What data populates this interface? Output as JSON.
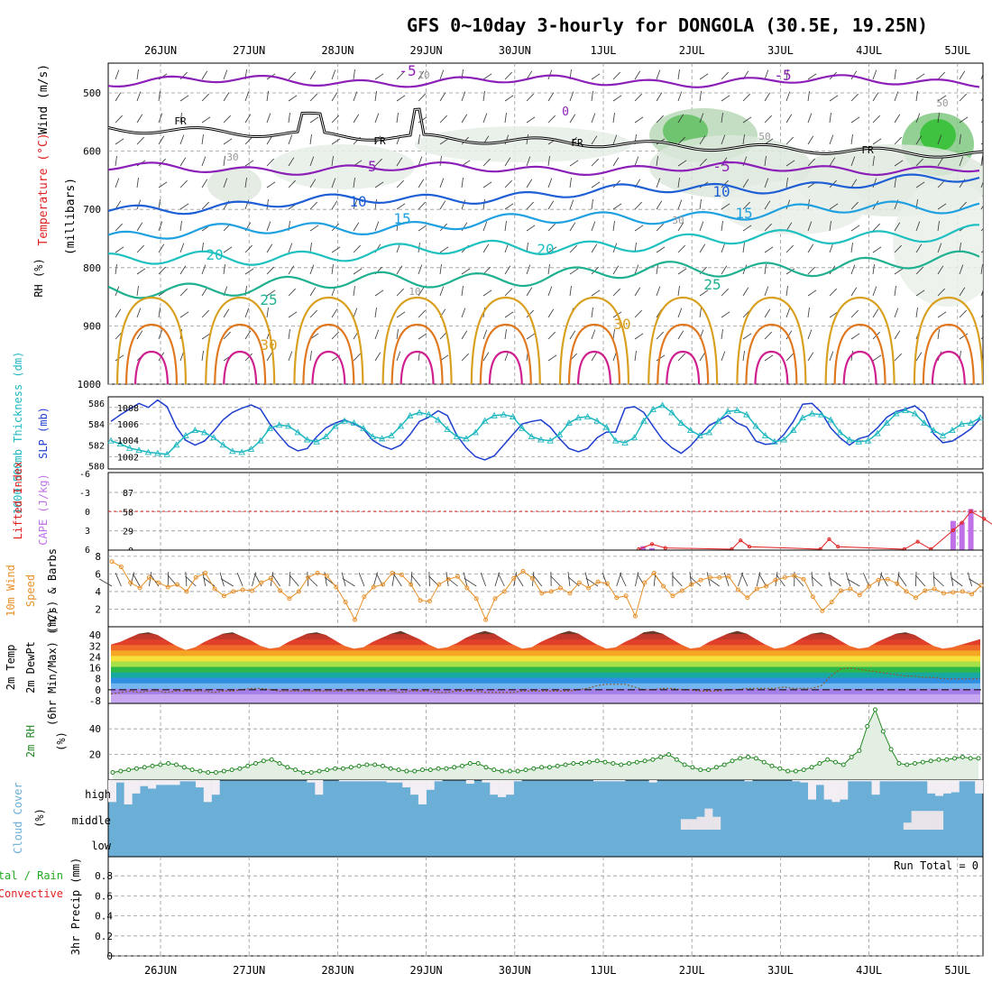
{
  "title": "GFS 0~10day 3-hourly for DONGOLA (30.5E, 19.25N)",
  "colors": {
    "temp5": "#8b1fb8",
    "temp10": "#1f5fd6",
    "temp15": "#1fa0e0",
    "temp20": "#1fc0c0",
    "temp25": "#1fb090",
    "temp30": "#d9a020",
    "temp35": "#e07820",
    "temp40": "#d0208f",
    "slp": "#1f3fcf",
    "thickness": "#1fb8c0",
    "cape": "#c070e8",
    "li": "#e02020",
    "wind": "#e8902a",
    "rh2m": "#228822",
    "cloud": "#6baed6",
    "precip_total": "#22aa22",
    "precip_conv": "#e02020"
  },
  "chart_data": [
    {
      "type": "heatmap",
      "name": "pressure-time cross section",
      "ylabel_parts": [
        "Wind (m/s)",
        "Temperature (°C)",
        "(millibars)",
        "RH (%)"
      ],
      "ylim": [
        1000,
        450
      ],
      "yticks": [
        500,
        600,
        700,
        800,
        900,
        1000
      ],
      "x_dates": [
        "26JUN",
        "27JUN",
        "28JUN",
        "29JUN",
        "30JUN",
        "1JUL",
        "2JUL",
        "3JUL",
        "4JUL",
        "5JUL"
      ],
      "contour_labels": [
        "-5",
        "-5",
        "0",
        "-5",
        "-5",
        "10",
        "10",
        "15",
        "15",
        "20",
        "20",
        "25",
        "25",
        "30",
        "30",
        "10",
        "10",
        "50",
        "50",
        "30",
        "30",
        "FR",
        "FR",
        "FR",
        "FR"
      ],
      "isotherm_levels_mb": {
        "-5a": 480,
        "-5b": 630,
        "10": 700,
        "15": 745,
        "20": 790,
        "25": 840,
        "30": 900
      },
      "freezing_level_mb": 600,
      "grid": true
    },
    {
      "type": "line",
      "name": "SLP and thickness",
      "ylabel_left": "1000-500mb Thickness (dm)",
      "ylabel_right": "SLP (mb)",
      "yticks_left": [
        580,
        582,
        584,
        586
      ],
      "yticks_right": [
        1002,
        1004,
        1006,
        1008
      ],
      "series": [
        {
          "name": "SLP (mb)",
          "values": [
            1006.3,
            1007.1,
            1007.8,
            1008.5,
            1008.0,
            1008.9,
            1008.1,
            1005.6,
            1004.0,
            1003.4,
            1003.9,
            1005.1,
            1006.5,
            1007.4,
            1007.9,
            1008.3,
            1007.8,
            1006.0,
            1004.6,
            1003.3,
            1002.7,
            1003.0,
            1004.4,
            1005.5,
            1006.1,
            1006.5,
            1006.0,
            1005.4,
            1004.0,
            1003.3,
            1002.9,
            1003.4,
            1004.7,
            1006.3,
            1006.8,
            1007.6,
            1007.0,
            1004.6,
            1003.1,
            1002.0,
            1001.6,
            1002.1,
            1003.4,
            1004.7,
            1006.0,
            1006.3,
            1006.5,
            1005.6,
            1004.2,
            1003.0,
            1002.6,
            1003.0,
            1004.3,
            1005.0,
            1005.0,
            1007.9,
            1008.1,
            1007.4,
            1005.7,
            1004.1,
            1003.1,
            1002.4,
            1003.3,
            1004.6,
            1005.8,
            1006.4,
            1007.0,
            1006.1,
            1005.6,
            1003.9,
            1003.5,
            1003.6,
            1004.7,
            1006.3,
            1008.4,
            1008.5,
            1007.4,
            1005.5,
            1004.3,
            1003.4,
            1004.2,
            1004.5,
            1005.5,
            1006.8,
            1007.5,
            1007.8,
            1008.2,
            1007.3,
            1004.8,
            1003.7,
            1003.9,
            1004.6,
            1005.4,
            1006.6
          ]
        },
        {
          "name": "Thickness (dm)",
          "values": [
            582.4,
            582.1,
            581.7,
            581.5,
            581.3,
            581.2,
            581.1,
            582.0,
            582.9,
            583.4,
            583.2,
            582.7,
            582.0,
            581.4,
            581.3,
            581.6,
            582.4,
            583.6,
            583.9,
            583.8,
            583.2,
            582.5,
            582.3,
            582.8,
            583.8,
            584.3,
            584.1,
            583.6,
            582.8,
            582.6,
            582.9,
            583.8,
            584.8,
            585.1,
            584.9,
            584.4,
            583.5,
            582.8,
            582.6,
            583.2,
            584.3,
            584.8,
            584.9,
            584.7,
            583.6,
            582.8,
            582.5,
            582.4,
            583.0,
            584.1,
            584.6,
            584.7,
            584.3,
            583.7,
            582.4,
            582.2,
            582.7,
            584.3,
            585.4,
            585.8,
            585.1,
            584.1,
            583.4,
            582.9,
            583.2,
            584.3,
            585.2,
            585.3,
            584.9,
            583.8,
            582.9,
            582.3,
            582.5,
            583.4,
            584.6,
            585.0,
            584.9,
            584.4,
            583.2,
            582.5,
            582.3,
            582.4,
            583.1,
            584.1,
            585.0,
            585.3,
            585.0,
            584.1,
            583.4,
            582.9,
            583.4,
            584.0,
            584.1,
            584.6
          ]
        }
      ]
    },
    {
      "type": "bar",
      "name": "CAPE and Lifted Index",
      "ylabel_left": "Lifted Index",
      "ylabel_right": "CAPE (J/kg)",
      "yticks_left": [
        6,
        3,
        0,
        -3,
        -6
      ],
      "yticks_right": [
        0,
        29,
        58,
        87
      ],
      "cape_bar_times": [
        5.45,
        5.55,
        8.95,
        9.05,
        9.15,
        9.45,
        9.55,
        9.65
      ],
      "cape_values": [
        6,
        3,
        44,
        42,
        62,
        19,
        18,
        15
      ],
      "li_times": [
        5.4,
        5.55,
        5.7,
        6.45,
        6.55,
        6.65,
        7.45,
        7.55,
        7.65,
        8.4,
        8.55,
        8.7,
        8.95,
        9.05,
        9.15,
        9.3,
        9.45,
        9.55,
        9.65,
        9.75
      ],
      "li_values": [
        6,
        5.2,
        5.8,
        6,
        4.6,
        5.6,
        6,
        4.4,
        5.6,
        6,
        4.8,
        6,
        3.0,
        1.8,
        0.0,
        1.2,
        2.6,
        3.2,
        4.6,
        6
      ]
    },
    {
      "type": "line",
      "name": "10m wind speed",
      "ylabel_parts": [
        "10m Wind",
        "Speed",
        "(m/s) & Barbs"
      ],
      "yticks": [
        2,
        4,
        6,
        8
      ],
      "series": [
        {
          "name": "10m Wind Speed (m/s)",
          "values": [
            7.4,
            6.8,
            5.0,
            4.4,
            5.6,
            5.0,
            4.5,
            4.8,
            4.0,
            5.6,
            6.1,
            4.3,
            3.5,
            4.0,
            4.2,
            4.1,
            5.0,
            5.5,
            4.1,
            3.2,
            4.0,
            5.6,
            6.1,
            5.8,
            4.5,
            2.8,
            0.8,
            3.4,
            4.5,
            4.8,
            6.1,
            5.9,
            4.8,
            3.0,
            2.9,
            4.8,
            5.4,
            5.7,
            4.4,
            3.2,
            0.8,
            3.2,
            4.0,
            5.5,
            6.3,
            5.5,
            3.8,
            4.0,
            4.4,
            3.8,
            5.0,
            4.4,
            5.1,
            4.9,
            3.3,
            3.5,
            1.2,
            5.0,
            6.1,
            4.6,
            3.5,
            4.1,
            4.8,
            5.3,
            5.6,
            5.6,
            5.7,
            4.2,
            3.3,
            4.3,
            4.6,
            5.3,
            5.6,
            5.8,
            5.4,
            3.4,
            1.8,
            2.8,
            4.1,
            4.3,
            3.6,
            4.6,
            5.3,
            5.4,
            4.9,
            4.0,
            3.3,
            4.1,
            4.3,
            3.8,
            3.9,
            4.0,
            3.7,
            4.7
          ]
        }
      ]
    },
    {
      "type": "area",
      "name": "2m temperature and dewpoint",
      "ylabel_parts": [
        "2m Temp",
        "2m DewPt",
        "(6hr Min/Max) (°C)"
      ],
      "yticks": [
        -8,
        0,
        8,
        16,
        24,
        32,
        40
      ],
      "series": [
        {
          "name": "2m Temp (°C)",
          "values": [
            33,
            35,
            38,
            41,
            42,
            40,
            36,
            32,
            29,
            31,
            35,
            38,
            41,
            42,
            39,
            36,
            32,
            30,
            31,
            35,
            38,
            41,
            42,
            40,
            36,
            32,
            30,
            31,
            35,
            38,
            41,
            43,
            40,
            37,
            33,
            30,
            31,
            34,
            38,
            41,
            43,
            41,
            37,
            33,
            30,
            31,
            35,
            38,
            41,
            43,
            41,
            37,
            33,
            30,
            31,
            35,
            38,
            42,
            43,
            41,
            37,
            33,
            30,
            31,
            35,
            38,
            41,
            43,
            41,
            37,
            33,
            30,
            31,
            34,
            38,
            41,
            42,
            40,
            36,
            32,
            30,
            31,
            35,
            38,
            41,
            42,
            40,
            36,
            32,
            30,
            31,
            33,
            35,
            37
          ]
        },
        {
          "name": "2m DewPt (°C)",
          "values": [
            -3,
            -2,
            -1,
            -2,
            -1,
            -1,
            -2,
            -1,
            -1,
            -1,
            -1,
            -2,
            -1,
            -1,
            0,
            1,
            1,
            0,
            -1,
            -1,
            -1,
            -1,
            -1,
            -1,
            -1,
            -1,
            -1,
            -1,
            -1,
            -1,
            -1,
            -2,
            -1,
            -1,
            -1,
            -2,
            -2,
            -1,
            -1,
            -1,
            -2,
            -2,
            -2,
            -2,
            -1,
            -1,
            -1,
            -1,
            -1,
            -1,
            0,
            1,
            3,
            4,
            4,
            4,
            2,
            0,
            0,
            1,
            1,
            0,
            0,
            -1,
            -1,
            -1,
            0,
            0,
            1,
            1,
            1,
            1,
            2,
            1,
            1,
            1,
            3,
            10,
            15,
            16,
            15,
            14,
            13,
            12,
            11,
            10,
            10,
            9,
            9,
            8,
            8,
            8,
            8,
            8
          ]
        }
      ]
    },
    {
      "type": "area",
      "name": "2m relative humidity",
      "ylabel_parts": [
        "2m RH",
        "(%)"
      ],
      "yticks": [
        20,
        40
      ],
      "series": [
        {
          "name": "2m RH (%)",
          "values": [
            6,
            7,
            8,
            9,
            10,
            11,
            12,
            13,
            12,
            10,
            8,
            7,
            6,
            6,
            7,
            8,
            9,
            11,
            13,
            15,
            16,
            13,
            10,
            8,
            6,
            6,
            7,
            8,
            9,
            9,
            10,
            11,
            12,
            12,
            11,
            9,
            8,
            7,
            7,
            8,
            8,
            9,
            9,
            10,
            11,
            13,
            13,
            10,
            8,
            7,
            7,
            7,
            8,
            9,
            10,
            10,
            11,
            12,
            13,
            13,
            14,
            15,
            14,
            13,
            12,
            13,
            14,
            15,
            16,
            18,
            20,
            16,
            12,
            10,
            8,
            8,
            10,
            12,
            15,
            17,
            18,
            17,
            14,
            11,
            9,
            7,
            7,
            8,
            10,
            13,
            16,
            14,
            12,
            18,
            23,
            42,
            55,
            38,
            24,
            13,
            12,
            13,
            14,
            15,
            16,
            16,
            17,
            18,
            17,
            17
          ]
        }
      ]
    },
    {
      "type": "heatmap",
      "name": "cloud cover",
      "ylabel_parts": [
        "Cloud Cover",
        "(%)"
      ],
      "row_labels": [
        "high",
        "middle",
        "low"
      ],
      "high_clear_fraction": [
        0.9,
        0.1,
        1.0,
        0.55,
        0.25,
        0.35,
        0.2,
        0.2,
        0.2,
        0.05,
        0.05,
        0.3,
        0.9,
        0.6,
        0.0,
        0.0,
        0.0,
        0.0,
        0.0,
        0.0,
        0.0,
        0.0,
        0.0,
        0.0,
        0.0,
        0.1,
        0.6,
        0.0,
        0.0,
        0.05,
        0.05,
        0.05,
        0.05,
        0.05,
        0.05,
        0.1,
        0.1,
        0.3,
        0.6,
        1.0,
        0.4,
        0.05,
        0.0,
        0.0,
        0.0,
        0.15,
        0.0,
        0.1,
        0.6,
        0.7,
        0.6,
        0.05,
        0.0,
        0.0,
        0.0,
        0.0,
        0.0,
        0.0,
        0.0,
        0.0,
        0.0,
        0.05,
        0.05,
        0.05,
        0.05,
        0.0,
        0.0,
        0.0,
        0.1,
        0.0,
        0.0,
        0.0,
        0.0,
        0.0,
        0.0,
        0.0,
        0.0,
        0.0,
        0.0,
        0.0,
        0.05,
        0.0,
        0.0,
        0.0,
        0.0,
        0.0,
        0.05,
        0.1,
        0.8,
        0.2,
        0.8,
        0.9,
        0.8,
        0.05,
        0.05,
        0.05,
        0.6,
        0.05,
        0.05,
        0.05,
        0.05,
        0.05,
        0.05,
        0.55,
        0.65,
        0.55,
        0.5,
        0.05,
        0.05,
        0.55
      ],
      "middle_clear_fraction": [
        0,
        0,
        0,
        0,
        0,
        0,
        0,
        0,
        0,
        0,
        0,
        0,
        0,
        0,
        0,
        0,
        0,
        0,
        0,
        0,
        0,
        0,
        0,
        0,
        0,
        0,
        0,
        0,
        0,
        0,
        0,
        0,
        0,
        0,
        0,
        0,
        0,
        0,
        0,
        0,
        0,
        0,
        0,
        0,
        0,
        0,
        0,
        0,
        0,
        0,
        0,
        0,
        0,
        0,
        0,
        0,
        0,
        0,
        0,
        0,
        0,
        0,
        0,
        0,
        0,
        0,
        0,
        0,
        0,
        0,
        0,
        0,
        0.45,
        0.45,
        0.55,
        0.9,
        0.55,
        0,
        0,
        0,
        0,
        0,
        0,
        0,
        0,
        0,
        0,
        0,
        0,
        0,
        0,
        0,
        0,
        0,
        0,
        0,
        0,
        0,
        0,
        0,
        0.3,
        0.8,
        0.8,
        0.8,
        0.8,
        0,
        0,
        0,
        0,
        0
      ]
    },
    {
      "type": "bar",
      "name": "3hr precipitation",
      "ylabel_parts": [
        "3hr Precip (mm)",
        "Total / Rain",
        "Convective"
      ],
      "yticks": [
        0,
        0.2,
        0.4,
        0.6,
        0.8
      ],
      "run_total_label": "Run Total = 0",
      "values": []
    }
  ]
}
